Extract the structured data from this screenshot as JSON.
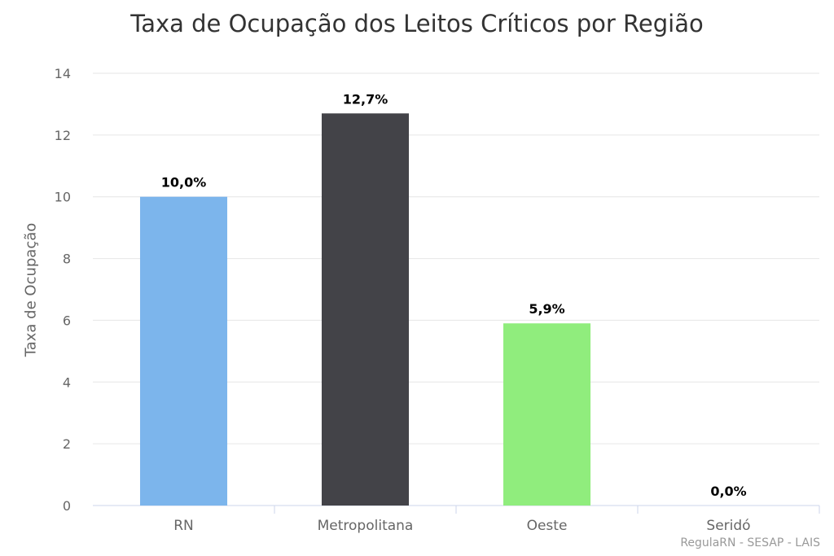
{
  "chart_data": {
    "type": "bar",
    "title": "Taxa de Ocupação dos Leitos Críticos por Região",
    "ylabel": "Taxa de Ocupação",
    "xlabel": "",
    "categories": [
      "RN",
      "Metropolitana",
      "Oeste",
      "Seridó"
    ],
    "values": [
      10.0,
      12.7,
      5.9,
      0.0
    ],
    "data_labels": [
      "10,0%",
      "12,7%",
      "5,9%",
      "0,0%"
    ],
    "bar_colors": [
      "#7cb5ec",
      "#434348",
      "#90ed7d",
      "#f7a35c"
    ],
    "ylim": [
      0,
      14
    ],
    "yticks": [
      0,
      2,
      4,
      6,
      8,
      10,
      12,
      14
    ],
    "grid": true,
    "legend": "none"
  },
  "credits": "RegulaRN - SESAP - LAIS"
}
